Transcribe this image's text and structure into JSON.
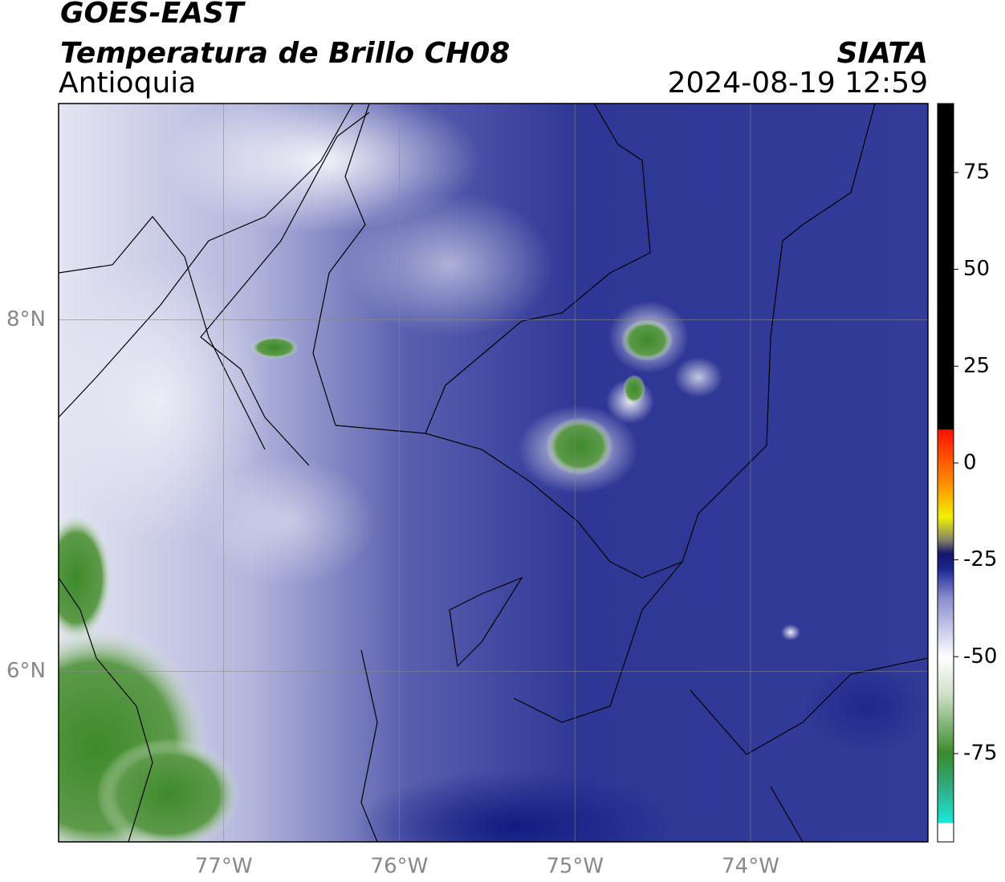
{
  "header": {
    "title": "GOES-EAST",
    "subtitle": "Temperatura de Brillo CH08",
    "region": "Antioquia",
    "source": "SIATA",
    "datetime": "2024-08-19 12:59"
  },
  "map": {
    "xlim": [
      -77.94,
      -72.99
    ],
    "ylim": [
      5.03,
      9.23
    ],
    "xticks": [
      {
        "value": -77,
        "label": "77°W"
      },
      {
        "value": -76,
        "label": "76°W"
      },
      {
        "value": -75,
        "label": "75°W"
      },
      {
        "value": -74,
        "label": "74°W"
      }
    ],
    "yticks": [
      {
        "value": 6,
        "label": "6°N"
      },
      {
        "value": 8,
        "label": "8°N"
      }
    ],
    "grid": true
  },
  "colorbar": {
    "lim": [
      -97.8,
      92.8
    ],
    "ticks": [
      -75,
      -50,
      -25,
      0,
      25,
      50,
      75
    ]
  }
}
